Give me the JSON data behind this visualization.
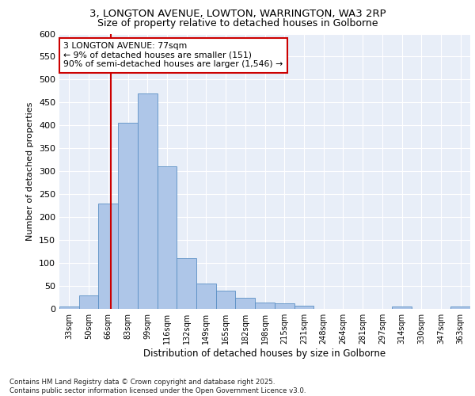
{
  "title_line1": "3, LONGTON AVENUE, LOWTON, WARRINGTON, WA3 2RP",
  "title_line2": "Size of property relative to detached houses in Golborne",
  "xlabel": "Distribution of detached houses by size in Golborne",
  "ylabel": "Number of detached properties",
  "categories": [
    "33sqm",
    "50sqm",
    "66sqm",
    "83sqm",
    "99sqm",
    "116sqm",
    "132sqm",
    "149sqm",
    "165sqm",
    "182sqm",
    "198sqm",
    "215sqm",
    "231sqm",
    "248sqm",
    "264sqm",
    "281sqm",
    "297sqm",
    "314sqm",
    "330sqm",
    "347sqm",
    "363sqm"
  ],
  "values": [
    5,
    30,
    230,
    405,
    470,
    310,
    110,
    55,
    40,
    25,
    14,
    12,
    7,
    0,
    0,
    0,
    0,
    5,
    0,
    0,
    5
  ],
  "bar_color": "#aec6e8",
  "bar_edge_color": "#5a8fc4",
  "annotation_text": "3 LONGTON AVENUE: 77sqm\n← 9% of detached houses are smaller (151)\n90% of semi-detached houses are larger (1,546) →",
  "vline_color": "#cc0000",
  "annotation_box_color": "#cc0000",
  "annotation_box_facecolor": "white",
  "background_color": "#e8eef8",
  "grid_color": "#ffffff",
  "footer_text": "Contains HM Land Registry data © Crown copyright and database right 2025.\nContains public sector information licensed under the Open Government Licence v3.0.",
  "ylim": [
    0,
    600
  ],
  "yticks": [
    0,
    50,
    100,
    150,
    200,
    250,
    300,
    350,
    400,
    450,
    500,
    550,
    600
  ]
}
